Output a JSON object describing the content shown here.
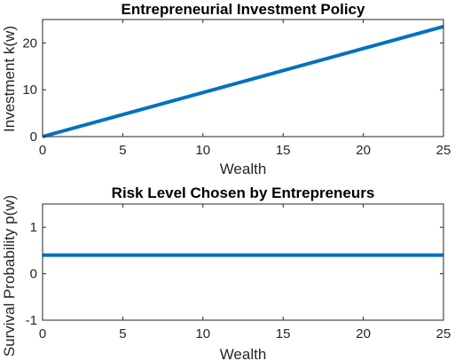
{
  "chart_data": [
    {
      "type": "line",
      "title": "Entrepreneurial Investment Policy",
      "xlabel": "Wealth",
      "ylabel": "Investment k(w)",
      "xlim": [
        0,
        25
      ],
      "ylim": [
        0,
        25
      ],
      "xticks": [
        0,
        5,
        10,
        15,
        20,
        25
      ],
      "yticks": [
        0,
        10,
        20
      ],
      "grid": false,
      "color": "#0072BD",
      "series": [
        {
          "x": [
            0,
            25
          ],
          "y": [
            0,
            23.5
          ]
        }
      ]
    },
    {
      "type": "line",
      "title": "Risk Level Chosen by Entrepreneurs",
      "xlabel": "Wealth",
      "ylabel": "Survival Probability p(w)",
      "xlim": [
        0,
        25
      ],
      "ylim": [
        -1,
        1.5
      ],
      "xticks": [
        0,
        5,
        10,
        15,
        20,
        25
      ],
      "yticks": [
        -1,
        0,
        1
      ],
      "grid": false,
      "color": "#0072BD",
      "series": [
        {
          "x": [
            0,
            25
          ],
          "y": [
            0.4,
            0.4
          ]
        }
      ]
    }
  ]
}
